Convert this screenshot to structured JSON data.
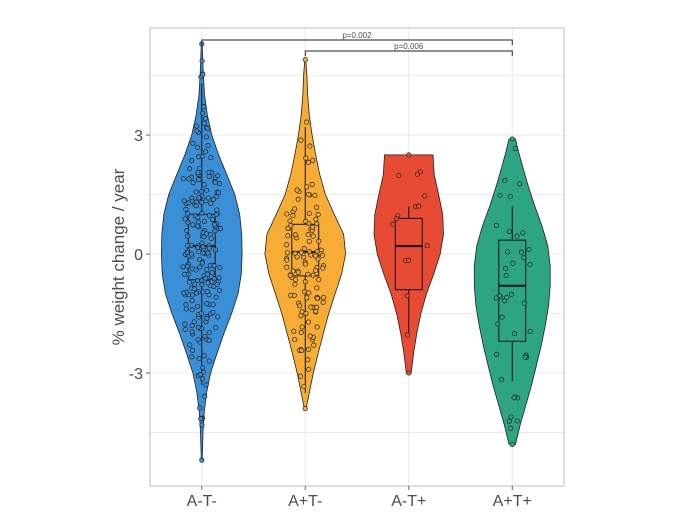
{
  "chart_data": {
    "type": "violin",
    "ylabel": "% weight change / year",
    "xlabel": "",
    "ylim": [
      -5.85,
      5.7
    ],
    "y_ticks": [
      -3,
      0,
      3
    ],
    "y_tick_labels": [
      "-3",
      "0",
      "3"
    ],
    "grid": true,
    "categories": [
      "A-T-",
      "A+T-",
      "A-T+",
      "A+T+"
    ],
    "colors": [
      "#3b8fd6",
      "#f7ad35",
      "#e84b33",
      "#2da583"
    ],
    "groups": [
      {
        "name": "A-T-",
        "min": -5.2,
        "max": 5.3,
        "q1": -0.65,
        "median": 0.2,
        "q3": 1.0,
        "whisker_low": -3.3,
        "whisker_high": 4.3,
        "density": [
          [
            -5.2,
            0.01
          ],
          [
            -4.5,
            0.03
          ],
          [
            -4,
            0.06
          ],
          [
            -3.5,
            0.12
          ],
          [
            -3,
            0.22
          ],
          [
            -2.5,
            0.38
          ],
          [
            -2,
            0.55
          ],
          [
            -1.5,
            0.74
          ],
          [
            -1,
            0.9
          ],
          [
            -0.5,
            0.98
          ],
          [
            0,
            1.0
          ],
          [
            0.5,
            0.99
          ],
          [
            1,
            0.94
          ],
          [
            1.5,
            0.82
          ],
          [
            2,
            0.62
          ],
          [
            2.5,
            0.42
          ],
          [
            3,
            0.25
          ],
          [
            3.5,
            0.14
          ],
          [
            4,
            0.07
          ],
          [
            4.5,
            0.04
          ],
          [
            5.3,
            0.01
          ]
        ],
        "n_points": 220
      },
      {
        "name": "A+T-",
        "min": -3.9,
        "max": 4.9,
        "q1": -0.55,
        "median": 0.05,
        "q3": 0.75,
        "whisker_low": -3.5,
        "whisker_high": 3.2,
        "density": [
          [
            -3.9,
            0.02
          ],
          [
            -3.5,
            0.1
          ],
          [
            -3,
            0.2
          ],
          [
            -2.5,
            0.32
          ],
          [
            -2,
            0.45
          ],
          [
            -1.5,
            0.58
          ],
          [
            -1,
            0.74
          ],
          [
            -0.5,
            0.9
          ],
          [
            0,
            1.0
          ],
          [
            0.5,
            0.95
          ],
          [
            1,
            0.72
          ],
          [
            1.5,
            0.5
          ],
          [
            2,
            0.36
          ],
          [
            2.5,
            0.26
          ],
          [
            3,
            0.17
          ],
          [
            3.5,
            0.1
          ],
          [
            4,
            0.06
          ],
          [
            4.5,
            0.04
          ],
          [
            4.9,
            0.01
          ]
        ],
        "n_points": 115
      },
      {
        "name": "A-T+",
        "min": -3.0,
        "max": 2.5,
        "q1": -0.9,
        "median": 0.2,
        "q3": 0.9,
        "whisker_low": -2.0,
        "whisker_high": 1.2,
        "density": [
          [
            -3,
            0.06
          ],
          [
            -2.5,
            0.12
          ],
          [
            -2,
            0.2
          ],
          [
            -1.5,
            0.3
          ],
          [
            -1,
            0.44
          ],
          [
            -0.5,
            0.62
          ],
          [
            0,
            0.78
          ],
          [
            0.5,
            0.86
          ],
          [
            1,
            0.84
          ],
          [
            1.5,
            0.74
          ],
          [
            2,
            0.63
          ],
          [
            2.5,
            0.6
          ]
        ],
        "n_points": 14
      },
      {
        "name": "A+T+",
        "min": -4.8,
        "max": 2.9,
        "q1": -2.2,
        "median": -0.8,
        "q3": 0.35,
        "whisker_low": -3.2,
        "whisker_high": 1.2,
        "density": [
          [
            -4.8,
            0.08
          ],
          [
            -4.3,
            0.2
          ],
          [
            -3.8,
            0.34
          ],
          [
            -3.3,
            0.48
          ],
          [
            -2.8,
            0.6
          ],
          [
            -2.3,
            0.72
          ],
          [
            -1.8,
            0.82
          ],
          [
            -1.3,
            0.9
          ],
          [
            -0.8,
            0.94
          ],
          [
            -0.3,
            0.94
          ],
          [
            0.2,
            0.88
          ],
          [
            0.7,
            0.74
          ],
          [
            1.2,
            0.56
          ],
          [
            1.7,
            0.4
          ],
          [
            2.2,
            0.26
          ],
          [
            2.6,
            0.15
          ],
          [
            2.9,
            0.08
          ]
        ],
        "n_points": 40
      }
    ],
    "significance": [
      {
        "from": "A-T-",
        "to": "A+T+",
        "label": "p=0.002"
      },
      {
        "from": "A+T-",
        "to": "A+T+",
        "label": "p=0.006"
      }
    ]
  }
}
